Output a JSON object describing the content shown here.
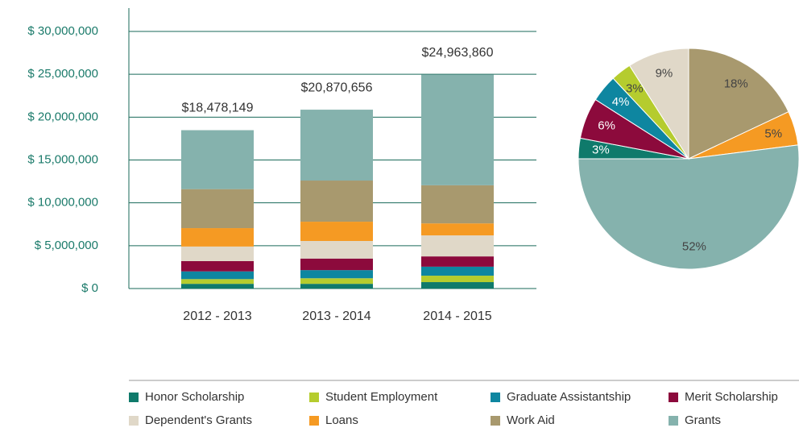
{
  "chart_data": [
    {
      "type": "bar",
      "stacked": true,
      "categories": [
        "2012 - 2013",
        "2013 - 2014",
        "2014 - 2015"
      ],
      "series": [
        {
          "name": "Honor Scholarship",
          "color": "#0f7a6b",
          "values": [
            550000,
            550000,
            750000
          ]
        },
        {
          "name": "Student Employment",
          "color": "#b5cc2e",
          "values": [
            550000,
            650000,
            750000
          ]
        },
        {
          "name": "Graduate Assistantship",
          "color": "#0e86a0",
          "values": [
            900000,
            950000,
            1050000
          ]
        },
        {
          "name": "Merit Scholarship",
          "color": "#8c0a3c",
          "values": [
            1200000,
            1350000,
            1200000
          ]
        },
        {
          "name": "Dependent's Grants",
          "color": "#e0d8c8",
          "values": [
            1700000,
            2050000,
            2450000
          ]
        },
        {
          "name": "Loans",
          "color": "#f59a23",
          "values": [
            2150000,
            2250000,
            1400000
          ]
        },
        {
          "name": "Work Aid",
          "color": "#a8996e",
          "values": [
            4550000,
            4800000,
            4450000
          ]
        },
        {
          "name": "Grants",
          "color": "#85b2ad",
          "values": [
            6878149,
            8270656,
            12913860
          ]
        }
      ],
      "totals": [
        18478149,
        20870656,
        24963860
      ],
      "total_labels": [
        "$18,478,149",
        "$20,870,656",
        "$24,963,860"
      ],
      "ylim": [
        0,
        30000000
      ],
      "yticks": [
        {
          "value": 0,
          "label": "$ 0"
        },
        {
          "value": 5000000,
          "label": "$ 5,000,000"
        },
        {
          "value": 10000000,
          "label": "$ 10,000,000"
        },
        {
          "value": 15000000,
          "label": "$ 15,000,000"
        },
        {
          "value": 20000000,
          "label": "$ 20,000,000"
        },
        {
          "value": 25000000,
          "label": "$ 25,000,000"
        },
        {
          "value": 30000000,
          "label": "$ 30,000,000"
        }
      ],
      "grid": true,
      "legend": "bottom"
    },
    {
      "type": "pie",
      "values": [
        18,
        5,
        52,
        3,
        6,
        4,
        3,
        9
      ],
      "value_labels": [
        "18%",
        "5%",
        "52%",
        "3%",
        "6%",
        "4%",
        "3%",
        "9%"
      ],
      "colors": [
        "#a8996e",
        "#f59a23",
        "#85b2ad",
        "#0f7a6b",
        "#8c0a3c",
        "#0e86a0",
        "#b5cc2e",
        "#e0d8c8"
      ]
    }
  ]
}
